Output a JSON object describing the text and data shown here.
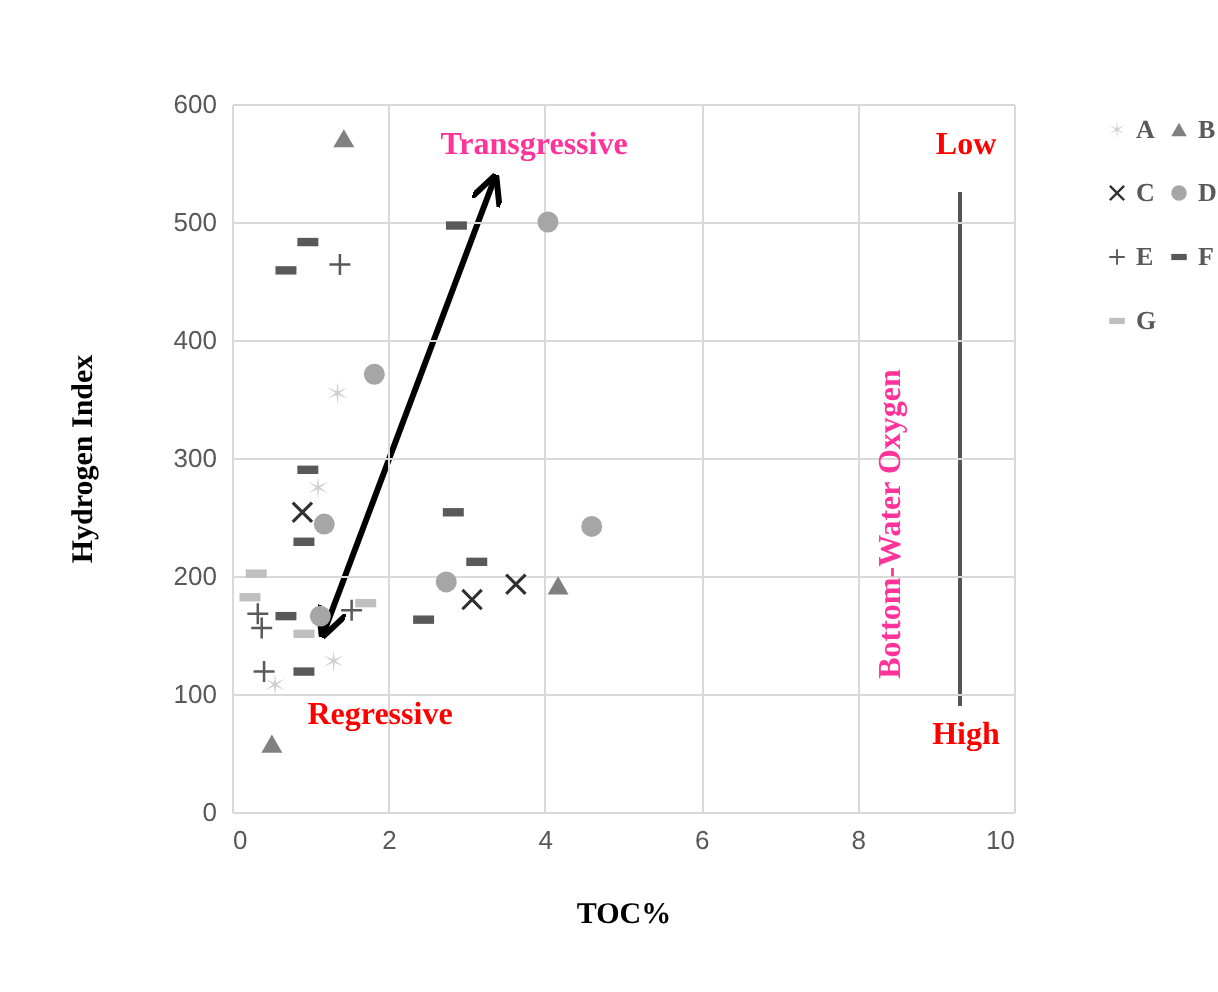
{
  "chart_data": {
    "type": "scatter",
    "xlabel": "TOC%",
    "ylabel": "Hydrogen Index",
    "xlim": [
      0,
      10
    ],
    "ylim": [
      0,
      600
    ],
    "xticks": [
      0,
      2,
      4,
      6,
      8,
      10
    ],
    "yticks": [
      0,
      100,
      200,
      300,
      400,
      500,
      600
    ],
    "grid": true,
    "legend": "right",
    "series": [
      {
        "name": "A",
        "color": "#d0d0d0",
        "marker": "cross",
        "x": [
          1.1,
          1.35,
          1.3,
          0.55
        ],
        "values": [
          275,
          355,
          128,
          108
        ]
      },
      {
        "name": "B",
        "color": "#808080",
        "marker": "triangle",
        "x": [
          1.43,
          4.17,
          0.51
        ],
        "values": [
          571,
          192,
          58
        ]
      },
      {
        "name": "C",
        "color": "#303030",
        "marker": "cross",
        "x": [
          0.9,
          3.07,
          3.63
        ],
        "values": [
          254,
          180,
          193
        ]
      },
      {
        "name": "D",
        "color": "#a6a6a6",
        "marker": "circle",
        "x": [
          4.04,
          1.82,
          1.18,
          2.74,
          4.6,
          1.13
        ],
        "values": [
          500,
          371,
          244,
          195,
          242,
          166
        ]
      },
      {
        "name": "E",
        "color": "#595959",
        "marker": "cross",
        "x": [
          1.38,
          0.33,
          0.38,
          0.41,
          1.53
        ],
        "values": [
          464,
          168,
          156,
          119,
          171
        ]
      },
      {
        "name": "F",
        "color": "#595959",
        "marker": "square",
        "x": [
          0.69,
          0.97,
          2.87,
          0.97,
          0.92,
          0.69,
          0.92,
          2.83,
          3.13,
          2.45
        ],
        "values": [
          459,
          483,
          497,
          290,
          229,
          166,
          119,
          254,
          212,
          163
        ]
      },
      {
        "name": "G",
        "color": "#bfbfbf",
        "marker": "square",
        "x": [
          0.31,
          0.23,
          0.92,
          1.71
        ],
        "values": [
          202,
          182,
          151,
          177
        ]
      }
    ],
    "annotations": [
      "Transgressive",
      "Regressive",
      "Low",
      "High",
      "Bottom-Water  Oxygen"
    ]
  }
}
